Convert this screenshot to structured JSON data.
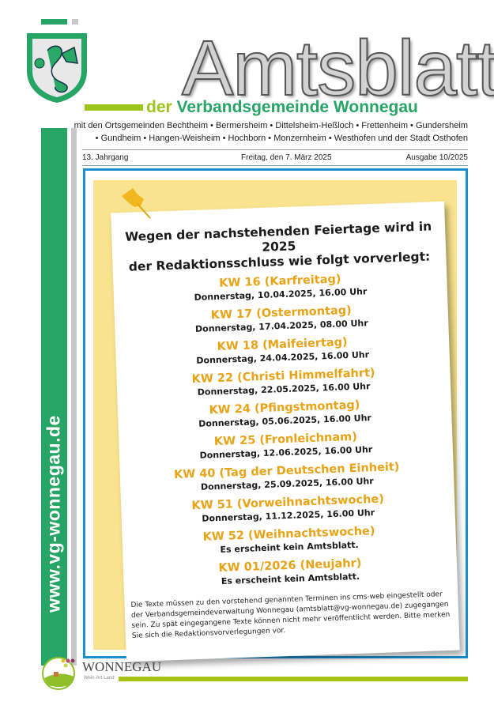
{
  "masthead": {
    "title": "Amtsblatt",
    "subtitle_der": "der",
    "subtitle_rest": "Verbandsgemeinde Wonnegau",
    "municipalities_line1": "mit den Ortsgemeinden Bechtheim • Bermersheim • Dittelsheim-Heßloch • Frettenheim • Gundersheim",
    "municipalities_line2": "• Gundheim • Hangen-Weisheim • Hochborn • Monzernheim • Westhofen und der Stadt Osthofen",
    "year": "13. Jahrgang",
    "date": "Freitag, den 7. März 2025",
    "issue": "Ausgabe 10/2025",
    "website": "www.vg-wonnegau.de"
  },
  "notice": {
    "headline_1": "Wegen der nachstehenden Feiertage wird in 2025",
    "headline_2": "der Redaktionsschluss wie folgt vorverlegt:",
    "items": [
      {
        "week": "KW 16 (Karfreitag)",
        "deadline": "Donnerstag, 10.04.2025, 16.00 Uhr"
      },
      {
        "week": "KW 17 (Ostermontag)",
        "deadline": "Donnerstag, 17.04.2025, 08.00 Uhr"
      },
      {
        "week": "KW 18 (Maifeiertag)",
        "deadline": "Donnerstag, 24.04.2025, 16.00 Uhr"
      },
      {
        "week": "KW 22 (Christi Himmelfahrt)",
        "deadline": "Donnerstag, 22.05.2025, 16.00 Uhr"
      },
      {
        "week": "KW 24 (Pfingstmontag)",
        "deadline": "Donnerstag, 05.06.2025, 16.00 Uhr"
      },
      {
        "week": "KW 25 (Fronleichnam)",
        "deadline": "Donnerstag, 12.06.2025, 16.00 Uhr"
      },
      {
        "week": "KW 40 (Tag der Deutschen Einheit)",
        "deadline": "Donnerstag, 25.09.2025, 16.00 Uhr"
      },
      {
        "week": "KW 51 (Vorweihnachtswoche)",
        "deadline": "Donnerstag, 11.12.2025, 16.00 Uhr"
      },
      {
        "week": "KW 52 (Weihnachtswoche)",
        "deadline": "Es erscheint kein Amtsblatt."
      },
      {
        "week": "KW 01/2026 (Neujahr)",
        "deadline": "Es erscheint kein Amtsblatt."
      }
    ],
    "footnote": "Die Texte müssen zu den vorstehend genannten Terminen ins cms-web eingestellt oder der Verbandsgemeindeverwaltung Wonnegau (amtsblatt@vg-wonnegau.de) zugegangen sein. Zu spät eingegangene Texte können nicht mehr veröffentlicht werden. Bitte merken Sie sich die Redaktionsvorverlegungen vor."
  },
  "footer": {
    "logo_text": "WONNEGAU",
    "logo_tagline": "Wein·Art·Land"
  },
  "colors": {
    "green": "#27a566",
    "lime": "#9dc41a",
    "blue": "#1a8fd0",
    "yellow": "#f9e38e",
    "orange": "#e8a317"
  }
}
